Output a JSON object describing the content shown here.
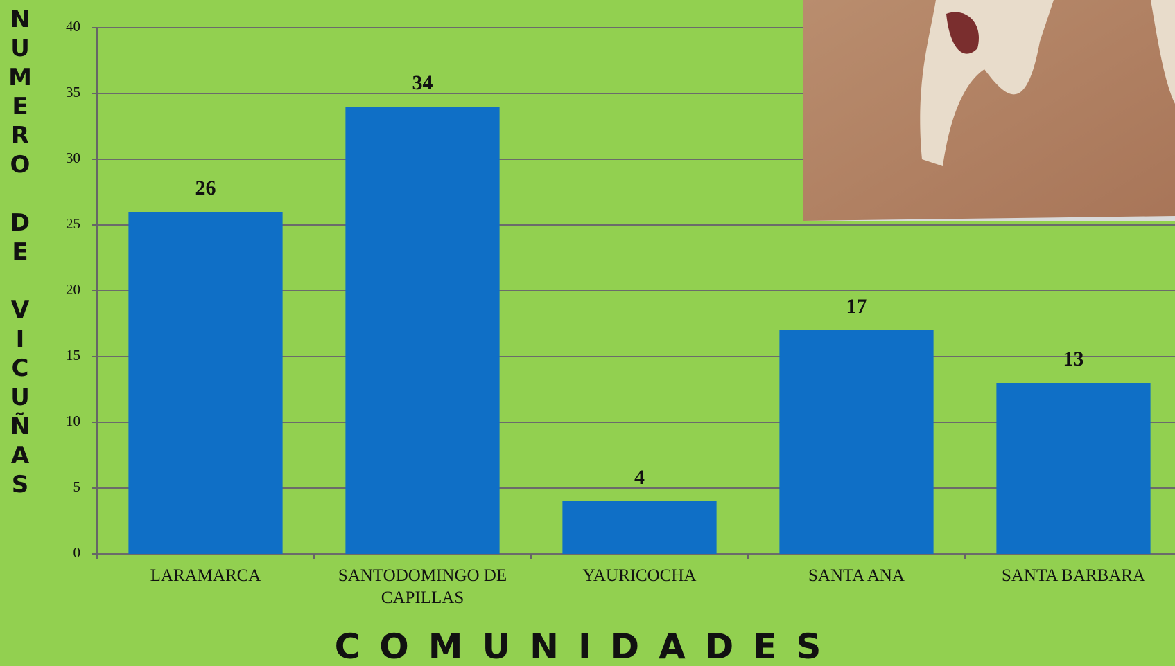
{
  "chart_data": {
    "type": "bar",
    "y_label": "NUMERO DE VICUÑAS",
    "x_label": "COMUNIDADES",
    "categories": [
      "LARAMARCA",
      "SANTODOMINGO DE CAPILLAS",
      "YAURICOCHA",
      "SANTA ANA",
      "SANTA BARBARA"
    ],
    "values": [
      26,
      34,
      4,
      17,
      13
    ],
    "color": "#0f6fc6",
    "ylim": [
      0,
      40
    ],
    "yticks": [
      0,
      5,
      10,
      15,
      20,
      25,
      30,
      35,
      40
    ],
    "grid": true
  }
}
